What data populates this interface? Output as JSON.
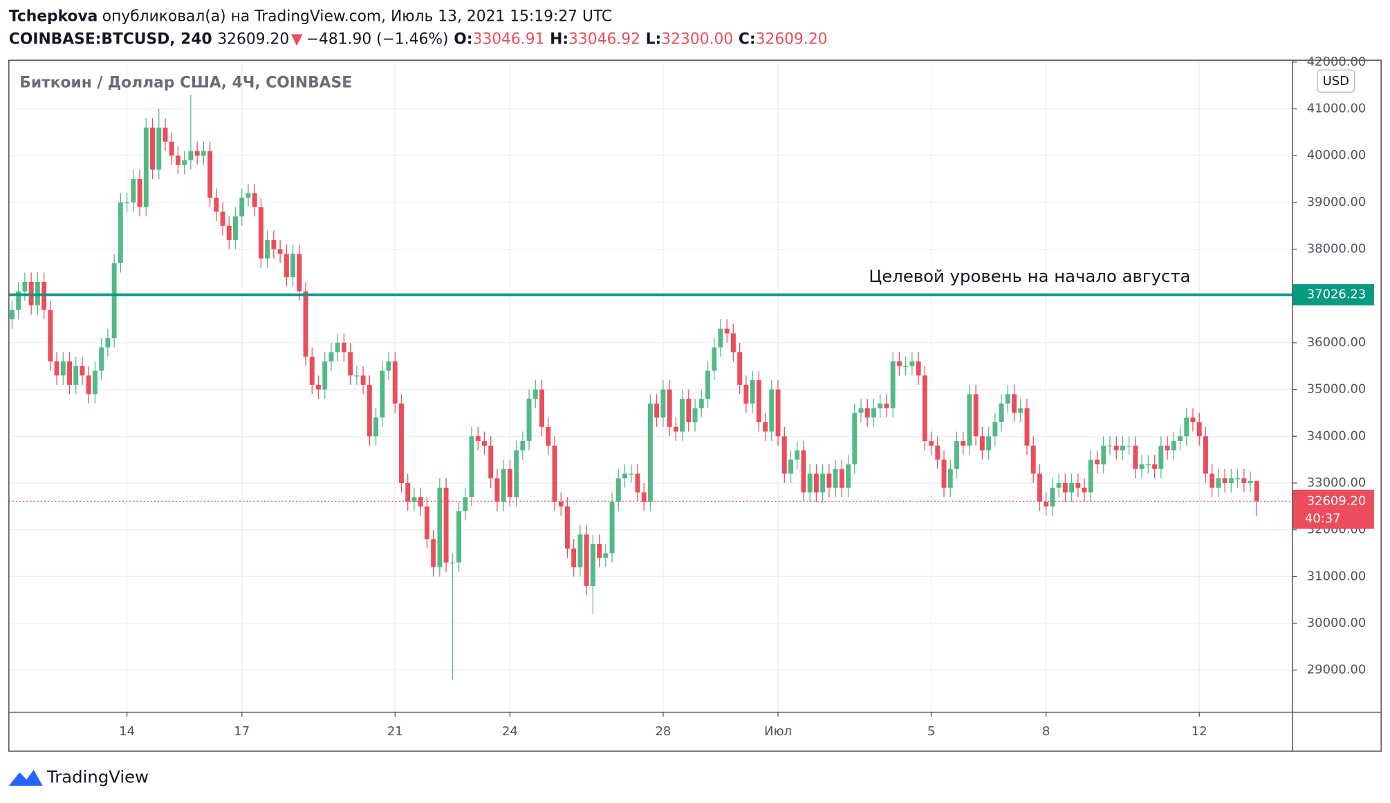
{
  "header": {
    "author": "Tchepkova",
    "published": "опубликовал(а) на TradingView.com, Июль 13, 2021 15:19:27 UTC",
    "symbol": "COINBASE:BTCUSD, 240",
    "price": "32609.20",
    "arrow": "▼",
    "change": "−481.90 (−1.46%)",
    "o_label": "O:",
    "o": "33046.91",
    "h_label": "H:",
    "h": "33046.92",
    "l_label": "L:",
    "l": "32300.00",
    "c_label": "C:",
    "c": "32609.20"
  },
  "footer": {
    "brand": "TradingView"
  },
  "chart_data": {
    "type": "candlestick",
    "legend_text": "Биткоин / Доллар США, 4Ч, COINBASE",
    "currency": "USD",
    "up_color": "#53b987",
    "down_color": "#eb4d5c",
    "grid": true,
    "xlim": [
      -0.5,
      200.6
    ],
    "ylim": [
      28100,
      42040
    ],
    "yticks": [
      {
        "value": 29000,
        "label": "29000.00"
      },
      {
        "value": 30000,
        "label": "30000.00"
      },
      {
        "value": 31000,
        "label": "31000.00"
      },
      {
        "value": 32000,
        "label": "32000.00"
      },
      {
        "value": 33000,
        "label": "33000.00"
      },
      {
        "value": 34000,
        "label": "34000.00"
      },
      {
        "value": 35000,
        "label": "35000.00"
      },
      {
        "value": 36000,
        "label": "36000.00"
      },
      {
        "value": 37000,
        "label": "37000.00"
      },
      {
        "value": 38000,
        "label": "38000.00"
      },
      {
        "value": 39000,
        "label": "39000.00"
      },
      {
        "value": 40000,
        "label": "40000.00"
      },
      {
        "value": 41000,
        "label": "41000.00"
      },
      {
        "value": 42000,
        "label": "42000.00"
      }
    ],
    "xticks": [
      {
        "value": 18,
        "label": "14"
      },
      {
        "value": 36,
        "label": "17"
      },
      {
        "value": 60,
        "label": "21"
      },
      {
        "value": 78,
        "label": "24"
      },
      {
        "value": 102,
        "label": "28"
      },
      {
        "value": 120,
        "label": "Июл"
      },
      {
        "value": 144,
        "label": "5"
      },
      {
        "value": 162,
        "label": "8"
      },
      {
        "value": 186,
        "label": "12"
      }
    ],
    "level": {
      "value": 37026.23,
      "color": "#089981",
      "annotation": "Целевой уровень на начало августа"
    },
    "last": {
      "value": 32609.2,
      "label": "32609.20",
      "countdown": "40:37",
      "color": "#eb4d5c"
    },
    "open": [
      36500,
      36700,
      37100,
      37300,
      36800,
      37300,
      36700,
      35600,
      35300,
      35600,
      35100,
      35500,
      35300,
      34900,
      35400,
      35900,
      36100,
      37700,
      39000,
      39000,
      39500,
      38900,
      40600,
      39700,
      40600,
      40300,
      40000,
      39800,
      39900,
      40100,
      40000,
      40100,
      39100,
      38800,
      38500,
      38200,
      38700,
      39100,
      39200,
      38900,
      37800,
      38200,
      38000,
      37900,
      37400,
      37900,
      37100,
      35700,
      35100,
      35000,
      35600,
      35800,
      36000,
      35800,
      35300,
      35300,
      35100,
      34000,
      34400,
      35400,
      35600,
      34700,
      33000,
      32600,
      32700,
      32500,
      31800,
      31200,
      32900,
      31300,
      31300,
      32400,
      32700,
      34000,
      33900,
      33800,
      33100,
      32600,
      33300,
      32700,
      33700,
      33900,
      34800,
      35000,
      34200,
      33800,
      32600,
      32500,
      31600,
      31200,
      31900,
      30800,
      31700,
      31400,
      31500,
      32600,
      33100,
      33200,
      33200,
      32800,
      32600,
      34700,
      34400,
      35000,
      34200,
      34100,
      34800,
      34300,
      34600,
      34800,
      35400,
      35900,
      36300,
      36200,
      35800,
      35100,
      34700,
      35200,
      34300,
      34100,
      35000,
      34000,
      33200,
      33500,
      33700,
      32800,
      33200,
      32800,
      33200,
      32900,
      33300,
      32900,
      33400,
      34500,
      34600,
      34400,
      34600,
      34700,
      34600,
      35600,
      35500,
      35500,
      35600,
      35300,
      33900,
      33800,
      33500,
      32900,
      33300,
      33900,
      33800,
      34900,
      34000,
      33700,
      34000,
      34300,
      34700,
      34900,
      34500,
      34600,
      33800,
      33200,
      32600,
      32500,
      32900,
      33000,
      32800,
      33000,
      32900,
      32800,
      33500,
      33400,
      33800,
      33800,
      33700,
      33800,
      33800,
      33300,
      33400,
      33400,
      33300,
      33800,
      33700,
      33900,
      34000,
      34400,
      34300,
      34000,
      33200,
      32900,
      33100,
      33000,
      33100,
      33100,
      33000,
      33046.91
    ],
    "high": [
      36900,
      37300,
      37500,
      37500,
      37500,
      37500,
      36900,
      35800,
      35800,
      35800,
      35700,
      35700,
      35500,
      35600,
      36100,
      36300,
      37900,
      39200,
      39200,
      39700,
      39700,
      40800,
      40800,
      41000,
      40800,
      40500,
      40200,
      40100,
      41300,
      40300,
      40300,
      40300,
      39300,
      39000,
      38700,
      38900,
      39300,
      39400,
      39400,
      39100,
      38400,
      38400,
      38200,
      38100,
      38100,
      38100,
      37300,
      35900,
      35300,
      35800,
      36000,
      36200,
      36200,
      36000,
      35500,
      35500,
      35300,
      34600,
      35600,
      35800,
      35800,
      34900,
      33200,
      32900,
      32900,
      32700,
      32000,
      33100,
      33100,
      31500,
      32600,
      32900,
      34200,
      34200,
      34100,
      34000,
      33300,
      33500,
      33500,
      33900,
      34100,
      35000,
      35200,
      35200,
      34400,
      34000,
      32800,
      32700,
      31800,
      32100,
      32100,
      31900,
      31900,
      31700,
      32800,
      33300,
      33400,
      33400,
      33400,
      33000,
      34900,
      34900,
      35200,
      35200,
      34400,
      35000,
      35000,
      34800,
      35000,
      35600,
      36100,
      36500,
      36500,
      36400,
      36000,
      35300,
      35400,
      35400,
      34500,
      35200,
      35200,
      34200,
      33700,
      33900,
      33900,
      33400,
      33400,
      33400,
      33400,
      33500,
      33500,
      33600,
      34700,
      34800,
      34800,
      34800,
      34900,
      34900,
      35800,
      35800,
      35700,
      35800,
      35800,
      35500,
      34100,
      34000,
      33700,
      33500,
      34100,
      34100,
      35100,
      35100,
      34200,
      34200,
      34500,
      34900,
      35100,
      35100,
      34800,
      34800,
      34000,
      33400,
      32800,
      33100,
      33200,
      33200,
      33200,
      33200,
      33100,
      33700,
      33700,
      34000,
      34000,
      34000,
      34000,
      34000,
      34000,
      33600,
      33600,
      33600,
      34000,
      34000,
      34100,
      34200,
      34600,
      34600,
      34500,
      34200,
      33400,
      33300,
      33300,
      33300,
      33300,
      33300,
      33246.91,
      33046.92
    ],
    "low": [
      36300,
      36500,
      36900,
      36600,
      36600,
      36500,
      35400,
      35100,
      35100,
      34900,
      34900,
      35100,
      34700,
      34700,
      35200,
      35700,
      35900,
      37500,
      38800,
      38800,
      38700,
      38700,
      39500,
      39500,
      40100,
      39800,
      39600,
      39600,
      39700,
      39800,
      39800,
      38900,
      38600,
      38300,
      38000,
      38000,
      38500,
      38900,
      38700,
      37600,
      37600,
      37800,
      37700,
      37200,
      37200,
      36900,
      35500,
      34900,
      34800,
      34800,
      35400,
      35600,
      35600,
      35100,
      35100,
      34900,
      33800,
      33800,
      34200,
      35200,
      34500,
      32800,
      32400,
      32400,
      32300,
      31600,
      31000,
      31000,
      31100,
      28800,
      31100,
      32200,
      32500,
      33700,
      33600,
      32900,
      32400,
      32400,
      32500,
      32500,
      33500,
      33700,
      34600,
      34000,
      33600,
      32400,
      32300,
      31400,
      31000,
      31000,
      30600,
      30200,
      31200,
      31200,
      31300,
      32400,
      32900,
      33000,
      32600,
      32400,
      32400,
      34200,
      34200,
      34000,
      33900,
      33900,
      34100,
      34100,
      34400,
      34600,
      35200,
      35700,
      36000,
      35600,
      34900,
      34500,
      34500,
      34100,
      33900,
      33900,
      33800,
      33000,
      33000,
      33300,
      32600,
      32600,
      32600,
      32600,
      32700,
      32700,
      32700,
      32700,
      33200,
      34300,
      34200,
      34200,
      34400,
      34400,
      34400,
      35300,
      35300,
      35300,
      35100,
      33700,
      33600,
      33300,
      32700,
      32700,
      33100,
      33600,
      33600,
      33800,
      33500,
      33500,
      33800,
      34100,
      34500,
      34300,
      34300,
      33600,
      33000,
      32400,
      32300,
      32300,
      32700,
      32600,
      32600,
      32700,
      32600,
      32600,
      33200,
      33200,
      33600,
      33500,
      33500,
      33600,
      33100,
      33100,
      33200,
      33100,
      33100,
      33500,
      33500,
      33700,
      33800,
      34100,
      33800,
      33000,
      32700,
      32700,
      32800,
      32800,
      32900,
      32800,
      32800,
      32300
    ],
    "close": [
      36700,
      37100,
      37300,
      36800,
      37300,
      36700,
      35600,
      35300,
      35600,
      35100,
      35500,
      35300,
      34900,
      35400,
      35900,
      36100,
      37700,
      39000,
      39000,
      39500,
      38900,
      40600,
      39700,
      40600,
      40300,
      40000,
      39800,
      39900,
      40100,
      40000,
      40100,
      39100,
      38800,
      38500,
      38200,
      38700,
      39100,
      39200,
      38900,
      37800,
      38200,
      38000,
      37900,
      37400,
      37900,
      37100,
      35700,
      35100,
      35000,
      35600,
      35800,
      36000,
      35800,
      35300,
      35300,
      35100,
      34000,
      34400,
      35400,
      35600,
      34700,
      33000,
      32600,
      32700,
      32500,
      31800,
      31200,
      32900,
      31300,
      31300,
      32400,
      32700,
      34000,
      33900,
      33800,
      33100,
      32600,
      33300,
      32700,
      33700,
      33900,
      34800,
      35000,
      34200,
      33800,
      32600,
      32500,
      31600,
      31200,
      31900,
      30800,
      31700,
      31400,
      31500,
      32600,
      33100,
      33200,
      33200,
      32800,
      32600,
      34700,
      34400,
      35000,
      34200,
      34100,
      34800,
      34300,
      34600,
      34800,
      35400,
      35900,
      36300,
      36200,
      35800,
      35100,
      34700,
      35200,
      34300,
      34100,
      35000,
      34000,
      33200,
      33500,
      33700,
      32800,
      33200,
      32800,
      33200,
      32900,
      33300,
      32900,
      33400,
      34500,
      34600,
      34400,
      34600,
      34700,
      34600,
      35600,
      35500,
      35500,
      35600,
      35300,
      33900,
      33800,
      33500,
      32900,
      33300,
      33900,
      33800,
      34900,
      34000,
      33700,
      34000,
      34300,
      34700,
      34900,
      34500,
      34600,
      33800,
      33200,
      32600,
      32500,
      32900,
      33000,
      32800,
      33000,
      32900,
      32800,
      33500,
      33400,
      33800,
      33800,
      33700,
      33800,
      33800,
      33300,
      33400,
      33400,
      33300,
      33800,
      33700,
      33900,
      34000,
      34400,
      34300,
      34000,
      33200,
      32900,
      33100,
      33000,
      33100,
      33100,
      33000,
      33046.91,
      32609.2
    ]
  }
}
